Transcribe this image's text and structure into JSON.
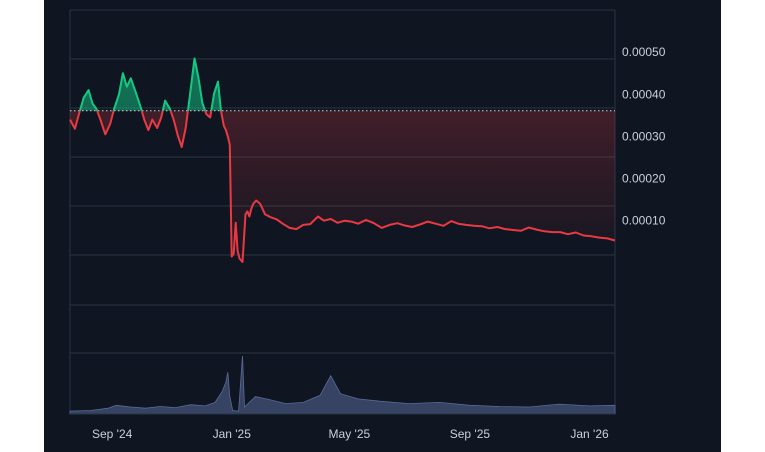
{
  "chart_data": {
    "type": "area",
    "title": "",
    "xlabel": "",
    "ylabel": "",
    "x_ticks": [
      "Sep '24",
      "Jan '25",
      "May '25",
      "Sep '25",
      "Jan '26"
    ],
    "y_ticks": [
      "0.00050",
      "0.00040",
      "0.00030",
      "0.00020",
      "0.00010"
    ],
    "ylim": [
      -0.0001,
      0.0006
    ],
    "reference_value": 0.000361,
    "grid": true,
    "legend": "none",
    "colors": {
      "above_reference": "#16c784",
      "below_reference": "#ea3943",
      "volume": "#5a6a99",
      "grid": "#2a3444",
      "reference_line": "#cfd6e0",
      "background": "#0f1621"
    },
    "series": [
      {
        "x": [
          "2024-07-20",
          "2024-07-25",
          "2024-07-30",
          "2024-08-03",
          "2024-08-08",
          "2024-08-12",
          "2024-08-16",
          "2024-08-20",
          "2024-08-25",
          "2024-08-30",
          "2024-09-03",
          "2024-09-08",
          "2024-09-12",
          "2024-09-16",
          "2024-09-20",
          "2024-09-25",
          "2024-09-30",
          "2024-10-04",
          "2024-10-08",
          "2024-10-12",
          "2024-10-17",
          "2024-10-21",
          "2024-10-25",
          "2024-10-30",
          "2024-11-03",
          "2024-11-07",
          "2024-11-11",
          "2024-11-15",
          "2024-11-19",
          "2024-11-24",
          "2024-11-28",
          "2024-12-02",
          "2024-12-06",
          "2024-12-10",
          "2024-12-14",
          "2024-12-18",
          "2024-12-21",
          "2024-12-24",
          "2024-12-26",
          "2024-12-28",
          "2024-12-30",
          "2025-01-01",
          "2025-01-03",
          "2025-01-05",
          "2025-01-07",
          "2025-01-09",
          "2025-01-12",
          "2025-01-15",
          "2025-01-17",
          "2025-01-19",
          "2025-01-21",
          "2025-01-23",
          "2025-01-26",
          "2025-01-30",
          "2025-02-04",
          "2025-02-10",
          "2025-02-16",
          "2025-02-22",
          "2025-03-01",
          "2025-03-08",
          "2025-03-15",
          "2025-03-22",
          "2025-03-30",
          "2025-04-05",
          "2025-04-12",
          "2025-04-19",
          "2025-04-26",
          "2025-05-03",
          "2025-05-10",
          "2025-05-18",
          "2025-05-26",
          "2025-06-03",
          "2025-06-11",
          "2025-06-19",
          "2025-06-26",
          "2025-07-04",
          "2025-07-12",
          "2025-07-20",
          "2025-07-28",
          "2025-08-05",
          "2025-08-13",
          "2025-08-20",
          "2025-08-28",
          "2025-09-05",
          "2025-09-13",
          "2025-09-21",
          "2025-09-29",
          "2025-10-07",
          "2025-10-15",
          "2025-10-23",
          "2025-10-31",
          "2025-11-08",
          "2025-11-16",
          "2025-11-24",
          "2025-12-02",
          "2025-12-10",
          "2025-12-18",
          "2025-12-26",
          "2026-01-03",
          "2026-01-11",
          "2026-01-19",
          "2026-01-27"
        ],
        "values": [
          0.00034,
          0.000318,
          0.00036,
          0.000392,
          0.00041,
          0.000378,
          0.000365,
          0.00034,
          0.000305,
          0.00033,
          0.000365,
          0.0004,
          0.00045,
          0.000418,
          0.000438,
          0.000405,
          0.00037,
          0.000338,
          0.000315,
          0.00034,
          0.00032,
          0.000345,
          0.000385,
          0.000365,
          0.000338,
          0.000302,
          0.000275,
          0.00032,
          0.000392,
          0.000485,
          0.00044,
          0.00038,
          0.000353,
          0.000345,
          0.000402,
          0.00043,
          0.00036,
          0.000325,
          0.000315,
          0.0003,
          0.00028,
          1.5e-05,
          2.2e-05,
          9.5e-05,
          2.8e-05,
          1e-05,
          2e-06,
          0.000115,
          0.000122,
          0.00011,
          0.000128,
          0.00014,
          0.000148,
          0.00014,
          0.000115,
          0.000108,
          0.000103,
          9.3e-05,
          8.3e-05,
          8e-05,
          9e-05,
          9.2e-05,
          0.00011,
          0.0001,
          0.000104,
          9.5e-05,
          0.0001,
          9.8e-05,
          9.3e-05,
          0.000102,
          9.4e-05,
          8.3e-05,
          9e-05,
          9.4e-05,
          8.9e-05,
          8.5e-05,
          9.1e-05,
          9.8e-05,
          9.3e-05,
          8.8e-05,
          9.9e-05,
          9.3e-05,
          9e-05,
          8.8e-05,
          8.7e-05,
          8.2e-05,
          8.5e-05,
          8e-05,
          7.8e-05,
          7.6e-05,
          8.4e-05,
          7.9e-05,
          7.5e-05,
          7.3e-05,
          7.3e-05,
          6.8e-05,
          7.2e-05,
          6.5e-05,
          6.3e-05,
          6e-05,
          5.8e-05,
          5.3e-05
        ]
      }
    ],
    "volume": [
      {
        "x": "2024-07-20",
        "v": 0.05
      },
      {
        "x": "2024-08-10",
        "v": 0.06
      },
      {
        "x": "2024-08-28",
        "v": 0.1
      },
      {
        "x": "2024-09-05",
        "v": 0.15
      },
      {
        "x": "2024-09-20",
        "v": 0.12
      },
      {
        "x": "2024-10-05",
        "v": 0.1
      },
      {
        "x": "2024-10-20",
        "v": 0.13
      },
      {
        "x": "2024-11-05",
        "v": 0.11
      },
      {
        "x": "2024-11-20",
        "v": 0.16
      },
      {
        "x": "2024-12-05",
        "v": 0.14
      },
      {
        "x": "2024-12-15",
        "v": 0.2
      },
      {
        "x": "2024-12-22",
        "v": 0.38
      },
      {
        "x": "2024-12-26",
        "v": 0.55
      },
      {
        "x": "2024-12-28",
        "v": 0.72
      },
      {
        "x": "2024-12-30",
        "v": 0.3
      },
      {
        "x": "2025-01-02",
        "v": 0.06
      },
      {
        "x": "2025-01-08",
        "v": 0.05
      },
      {
        "x": "2025-01-12",
        "v": 1.0
      },
      {
        "x": "2025-01-14",
        "v": 0.12
      },
      {
        "x": "2025-01-25",
        "v": 0.3
      },
      {
        "x": "2025-02-08",
        "v": 0.25
      },
      {
        "x": "2025-02-25",
        "v": 0.18
      },
      {
        "x": "2025-03-15",
        "v": 0.2
      },
      {
        "x": "2025-04-01",
        "v": 0.32
      },
      {
        "x": "2025-04-12",
        "v": 0.66
      },
      {
        "x": "2025-04-22",
        "v": 0.35
      },
      {
        "x": "2025-05-10",
        "v": 0.26
      },
      {
        "x": "2025-06-01",
        "v": 0.22
      },
      {
        "x": "2025-07-01",
        "v": 0.18
      },
      {
        "x": "2025-08-01",
        "v": 0.2
      },
      {
        "x": "2025-09-01",
        "v": 0.15
      },
      {
        "x": "2025-10-01",
        "v": 0.13
      },
      {
        "x": "2025-11-01",
        "v": 0.12
      },
      {
        "x": "2025-12-01",
        "v": 0.17
      },
      {
        "x": "2026-01-01",
        "v": 0.14
      },
      {
        "x": "2026-01-27",
        "v": 0.15
      }
    ]
  }
}
